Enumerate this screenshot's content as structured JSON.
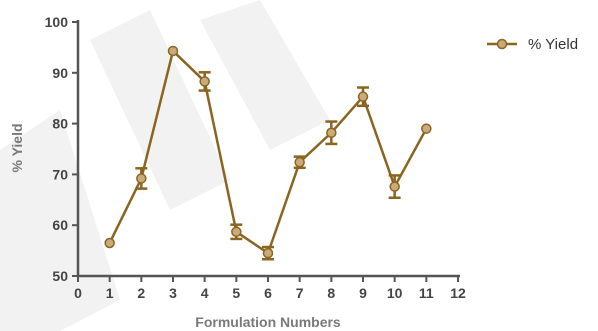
{
  "chart_data": {
    "type": "line",
    "title": "",
    "xlabel": "Formulation Numbers",
    "ylabel": "% Yield",
    "xlim": [
      0,
      12
    ],
    "ylim": [
      50,
      100
    ],
    "xticks": [
      0,
      1,
      2,
      3,
      4,
      5,
      6,
      7,
      8,
      9,
      10,
      11,
      12
    ],
    "yticks": [
      50,
      60,
      70,
      80,
      90,
      100
    ],
    "grid": false,
    "legend_position": "top-right",
    "series": [
      {
        "name": "% Yield",
        "color": "#8b6420",
        "marker_fill": "#c9aa78",
        "x": [
          1,
          2,
          3,
          4,
          5,
          6,
          7,
          8,
          9,
          10,
          11
        ],
        "y": [
          56.5,
          69.2,
          94.3,
          88.3,
          58.7,
          54.5,
          72.4,
          78.2,
          85.3,
          67.6,
          79.0
        ],
        "error": [
          0,
          2.0,
          0,
          1.8,
          1.4,
          1.2,
          1.1,
          2.2,
          1.8,
          2.2,
          0
        ]
      }
    ]
  }
}
